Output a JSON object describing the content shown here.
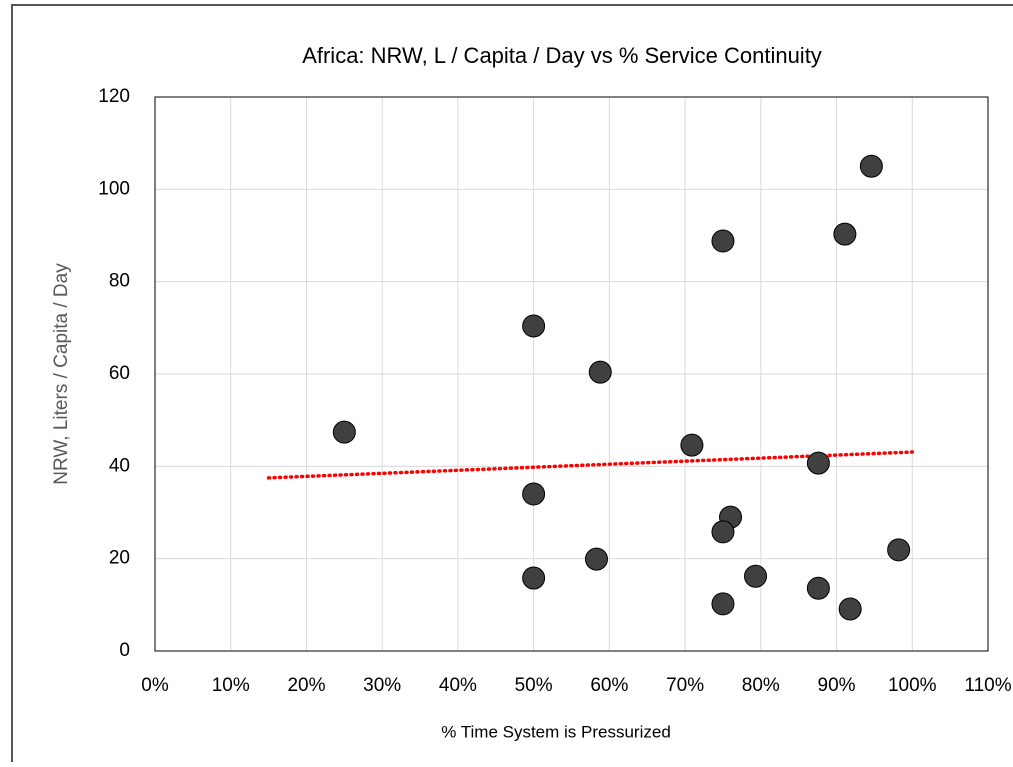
{
  "chart_data": {
    "type": "scatter",
    "title": "Africa:   NRW,  L / Capita / Day  vs   %  Service Continuity",
    "x_label": "% Time System is Pressurized",
    "y_label": "NRW, Liters / Capita / Day",
    "series": [
      {
        "color": "#404040",
        "x": [
          25,
          50,
          58.8,
          50,
          50,
          58.3,
          70.9,
          75,
          94.6,
          91.1,
          87.6,
          76,
          75,
          75,
          79.3,
          87.6,
          91.8,
          98.2
        ],
        "values": [
          47.4,
          70.4,
          60.4,
          34,
          15.8,
          19.9,
          44.6,
          88.8,
          105,
          90.3,
          40.7,
          29,
          25.8,
          10.2,
          16.2,
          13.6,
          9.1,
          21.9
        ]
      }
    ],
    "trendline": {
      "color": "#ff0000",
      "x": [
        15,
        100
      ],
      "values": [
        37.5,
        43.1
      ]
    },
    "xlim": [
      0,
      110
    ],
    "xticks": [
      {
        "value": 0,
        "label": "0%"
      },
      {
        "value": 10,
        "label": "10%"
      },
      {
        "value": 20,
        "label": "20%"
      },
      {
        "value": 30,
        "label": "30%"
      },
      {
        "value": 40,
        "label": "40%"
      },
      {
        "value": 50,
        "label": "50%"
      },
      {
        "value": 60,
        "label": "60%"
      },
      {
        "value": 70,
        "label": "70%"
      },
      {
        "value": 80,
        "label": "80%"
      },
      {
        "value": 90,
        "label": "90%"
      },
      {
        "value": 100,
        "label": "100%"
      },
      {
        "value": 110,
        "label": "110%"
      }
    ],
    "ylim": [
      0,
      120
    ],
    "yticks": [
      0,
      20,
      40,
      60,
      80,
      100,
      120
    ],
    "grid": true
  }
}
